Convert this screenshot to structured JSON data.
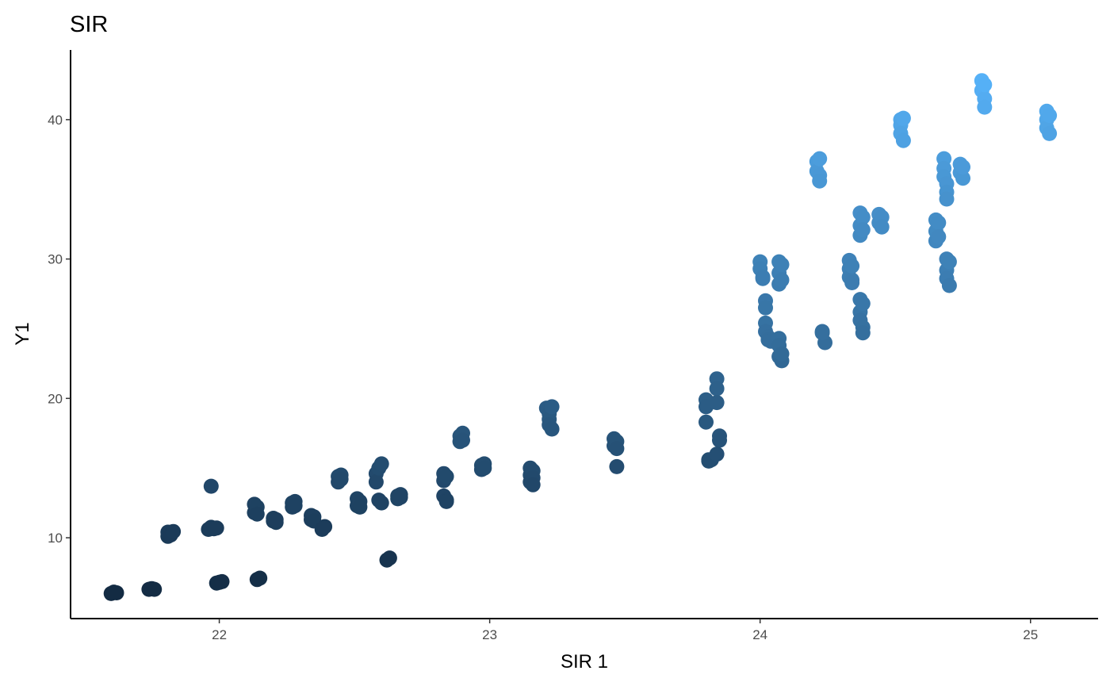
{
  "chart_data": {
    "type": "scatter",
    "title": "SIR",
    "xlabel": "SIR 1",
    "ylabel": "Y1",
    "xlim": [
      21.45,
      25.25
    ],
    "ylim": [
      4.2,
      45.0
    ],
    "x_ticks": [
      22,
      23,
      24,
      25
    ],
    "y_ticks": [
      10,
      20,
      30,
      40
    ],
    "grid": false,
    "legend": "none",
    "color_scale": {
      "low": "#132B43",
      "high": "#56B1F7",
      "mapped_to": "y"
    },
    "points": [
      [
        21.6,
        6.0
      ],
      [
        21.61,
        6.1
      ],
      [
        21.62,
        6.05
      ],
      [
        21.74,
        6.3
      ],
      [
        21.75,
        6.35
      ],
      [
        21.76,
        6.3
      ],
      [
        21.81,
        10.1
      ],
      [
        21.81,
        10.4
      ],
      [
        21.82,
        10.2
      ],
      [
        21.83,
        10.45
      ],
      [
        21.96,
        10.6
      ],
      [
        21.97,
        10.75
      ],
      [
        21.98,
        10.65
      ],
      [
        21.99,
        10.7
      ],
      [
        21.97,
        13.7
      ],
      [
        21.99,
        6.75
      ],
      [
        22.0,
        6.8
      ],
      [
        22.01,
        6.85
      ],
      [
        22.13,
        12.4
      ],
      [
        22.13,
        11.8
      ],
      [
        22.14,
        12.2
      ],
      [
        22.14,
        11.7
      ],
      [
        22.14,
        7.0
      ],
      [
        22.15,
        7.1
      ],
      [
        22.2,
        11.2
      ],
      [
        22.2,
        11.4
      ],
      [
        22.21,
        11.1
      ],
      [
        22.21,
        11.3
      ],
      [
        22.27,
        12.5
      ],
      [
        22.27,
        12.2
      ],
      [
        22.28,
        12.6
      ],
      [
        22.28,
        12.3
      ],
      [
        22.34,
        11.6
      ],
      [
        22.34,
        11.3
      ],
      [
        22.35,
        11.5
      ],
      [
        22.35,
        11.2
      ],
      [
        22.38,
        10.6
      ],
      [
        22.39,
        10.8
      ],
      [
        22.44,
        14.4
      ],
      [
        22.44,
        14.0
      ],
      [
        22.45,
        14.5
      ],
      [
        22.45,
        14.2
      ],
      [
        22.51,
        12.8
      ],
      [
        22.51,
        12.3
      ],
      [
        22.52,
        12.6
      ],
      [
        22.52,
        12.2
      ],
      [
        22.58,
        14.6
      ],
      [
        22.58,
        14.0
      ],
      [
        22.59,
        15.0
      ],
      [
        22.59,
        12.7
      ],
      [
        22.6,
        15.3
      ],
      [
        22.6,
        12.5
      ],
      [
        22.62,
        8.4
      ],
      [
        22.63,
        8.55
      ],
      [
        22.66,
        13.0
      ],
      [
        22.66,
        12.8
      ],
      [
        22.67,
        13.1
      ],
      [
        22.67,
        12.9
      ],
      [
        22.83,
        14.6
      ],
      [
        22.83,
        14.1
      ],
      [
        22.83,
        13.0
      ],
      [
        22.84,
        14.4
      ],
      [
        22.84,
        12.7
      ],
      [
        22.84,
        12.6
      ],
      [
        22.89,
        17.3
      ],
      [
        22.89,
        16.9
      ],
      [
        22.9,
        17.5
      ],
      [
        22.9,
        17.0
      ],
      [
        22.97,
        15.2
      ],
      [
        22.97,
        14.9
      ],
      [
        22.98,
        15.3
      ],
      [
        22.98,
        15.0
      ],
      [
        23.15,
        15.0
      ],
      [
        23.15,
        14.5
      ],
      [
        23.15,
        14.0
      ],
      [
        23.16,
        14.8
      ],
      [
        23.16,
        14.3
      ],
      [
        23.16,
        13.8
      ],
      [
        23.21,
        19.3
      ],
      [
        23.22,
        18.9
      ],
      [
        23.22,
        18.5
      ],
      [
        23.22,
        18.1
      ],
      [
        23.23,
        19.4
      ],
      [
        23.23,
        17.8
      ],
      [
        23.46,
        17.1
      ],
      [
        23.46,
        16.6
      ],
      [
        23.47,
        16.9
      ],
      [
        23.47,
        16.4
      ],
      [
        23.47,
        15.1
      ],
      [
        23.8,
        19.9
      ],
      [
        23.8,
        19.4
      ],
      [
        23.8,
        18.3
      ],
      [
        23.81,
        15.6
      ],
      [
        23.81,
        15.5
      ],
      [
        23.82,
        15.6
      ],
      [
        23.84,
        21.4
      ],
      [
        23.84,
        20.7
      ],
      [
        23.84,
        19.7
      ],
      [
        23.85,
        17.3
      ],
      [
        23.85,
        17.0
      ],
      [
        23.84,
        16.0
      ],
      [
        24.0,
        29.8
      ],
      [
        24.0,
        29.3
      ],
      [
        24.01,
        28.7
      ],
      [
        24.01,
        28.6
      ],
      [
        24.02,
        27.0
      ],
      [
        24.02,
        26.5
      ],
      [
        24.02,
        25.4
      ],
      [
        24.02,
        24.8
      ],
      [
        24.03,
        24.4
      ],
      [
        24.03,
        24.2
      ],
      [
        24.04,
        24.1
      ],
      [
        24.07,
        29.8
      ],
      [
        24.07,
        29.0
      ],
      [
        24.07,
        28.2
      ],
      [
        24.08,
        29.6
      ],
      [
        24.08,
        28.5
      ],
      [
        24.07,
        24.3
      ],
      [
        24.07,
        23.8
      ],
      [
        24.07,
        23.0
      ],
      [
        24.08,
        22.7
      ],
      [
        24.08,
        23.2
      ],
      [
        24.21,
        37.0
      ],
      [
        24.21,
        36.3
      ],
      [
        24.22,
        36.0
      ],
      [
        24.22,
        37.2
      ],
      [
        24.22,
        35.6
      ],
      [
        24.23,
        24.8
      ],
      [
        24.24,
        24.0
      ],
      [
        24.23,
        24.7
      ],
      [
        24.33,
        29.9
      ],
      [
        24.33,
        29.3
      ],
      [
        24.33,
        28.7
      ],
      [
        24.34,
        28.5
      ],
      [
        24.34,
        28.3
      ],
      [
        24.34,
        29.5
      ],
      [
        24.37,
        33.3
      ],
      [
        24.37,
        32.4
      ],
      [
        24.37,
        31.7
      ],
      [
        24.38,
        33.0
      ],
      [
        24.38,
        32.1
      ],
      [
        24.37,
        27.1
      ],
      [
        24.37,
        26.2
      ],
      [
        24.37,
        25.6
      ],
      [
        24.38,
        25.1
      ],
      [
        24.38,
        24.7
      ],
      [
        24.38,
        26.8
      ],
      [
        24.44,
        33.2
      ],
      [
        24.44,
        32.6
      ],
      [
        24.45,
        33.0
      ],
      [
        24.45,
        32.3
      ],
      [
        24.52,
        40.0
      ],
      [
        24.52,
        39.6
      ],
      [
        24.52,
        39.0
      ],
      [
        24.53,
        38.5
      ],
      [
        24.53,
        40.1
      ],
      [
        24.65,
        32.8
      ],
      [
        24.65,
        32.0
      ],
      [
        24.65,
        31.3
      ],
      [
        24.66,
        32.6
      ],
      [
        24.66,
        31.6
      ],
      [
        24.68,
        37.2
      ],
      [
        24.68,
        36.5
      ],
      [
        24.68,
        35.9
      ],
      [
        24.69,
        35.4
      ],
      [
        24.69,
        34.8
      ],
      [
        24.69,
        34.3
      ],
      [
        24.69,
        30.0
      ],
      [
        24.69,
        29.2
      ],
      [
        24.69,
        28.6
      ],
      [
        24.7,
        28.1
      ],
      [
        24.7,
        29.8
      ],
      [
        24.74,
        36.8
      ],
      [
        24.74,
        36.2
      ],
      [
        24.75,
        35.8
      ],
      [
        24.75,
        36.6
      ],
      [
        24.82,
        42.8
      ],
      [
        24.82,
        42.1
      ],
      [
        24.83,
        41.5
      ],
      [
        24.83,
        40.9
      ],
      [
        24.83,
        42.5
      ],
      [
        25.06,
        40.6
      ],
      [
        25.06,
        40.0
      ],
      [
        25.06,
        39.4
      ],
      [
        25.07,
        39.0
      ],
      [
        25.07,
        40.3
      ]
    ]
  }
}
